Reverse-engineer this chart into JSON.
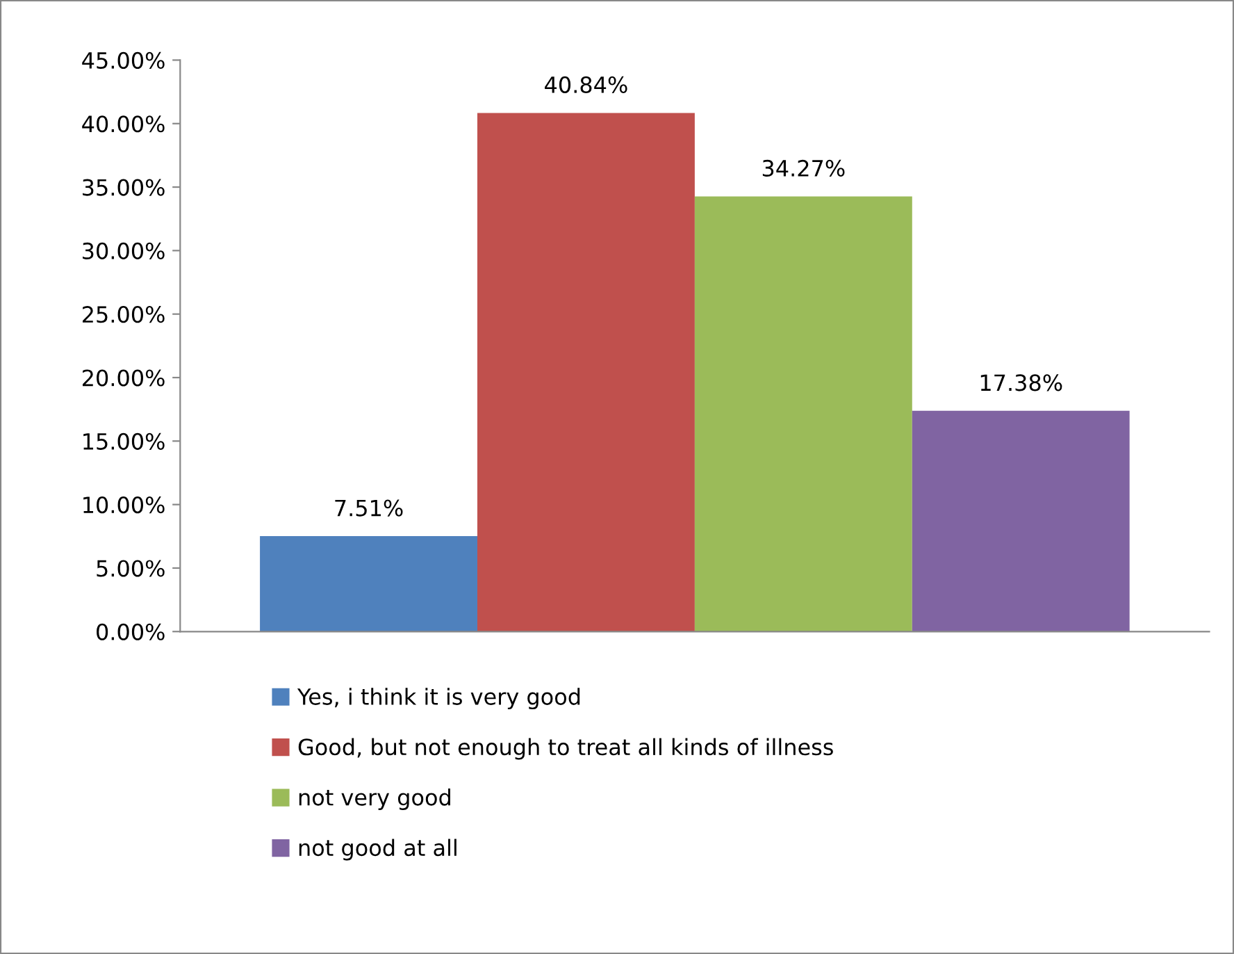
{
  "chart_data": {
    "type": "bar",
    "categories": [
      null
    ],
    "series": [
      {
        "name": "Yes, i think it is very good",
        "color": "#4f81bd",
        "values": [
          7.51
        ],
        "value_labels": [
          "7.51%"
        ]
      },
      {
        "name": "Good, but not enough to treat all kinds of illness",
        "color": "#c0504d",
        "values": [
          40.84
        ],
        "value_labels": [
          "40.84%"
        ]
      },
      {
        "name": "not very good",
        "color": "#9bbb59",
        "values": [
          34.27
        ],
        "value_labels": [
          "34.27%"
        ]
      },
      {
        "name": "not good at all",
        "color": "#8064a2",
        "values": [
          17.38
        ],
        "value_labels": [
          "17.38%"
        ]
      }
    ],
    "ylim": [
      0,
      45
    ],
    "yticks": [
      {
        "value": 0,
        "label": "0.00%"
      },
      {
        "value": 5,
        "label": "5.00%"
      },
      {
        "value": 10,
        "label": "10.00%"
      },
      {
        "value": 15,
        "label": "15.00%"
      },
      {
        "value": 20,
        "label": "20.00%"
      },
      {
        "value": 25,
        "label": "25.00%"
      },
      {
        "value": 30,
        "label": "30.00%"
      },
      {
        "value": 35,
        "label": "35.00%"
      },
      {
        "value": 40,
        "label": "40.00%"
      },
      {
        "value": 45,
        "label": "45.00%"
      }
    ],
    "grid": false,
    "legend": "bottom"
  }
}
